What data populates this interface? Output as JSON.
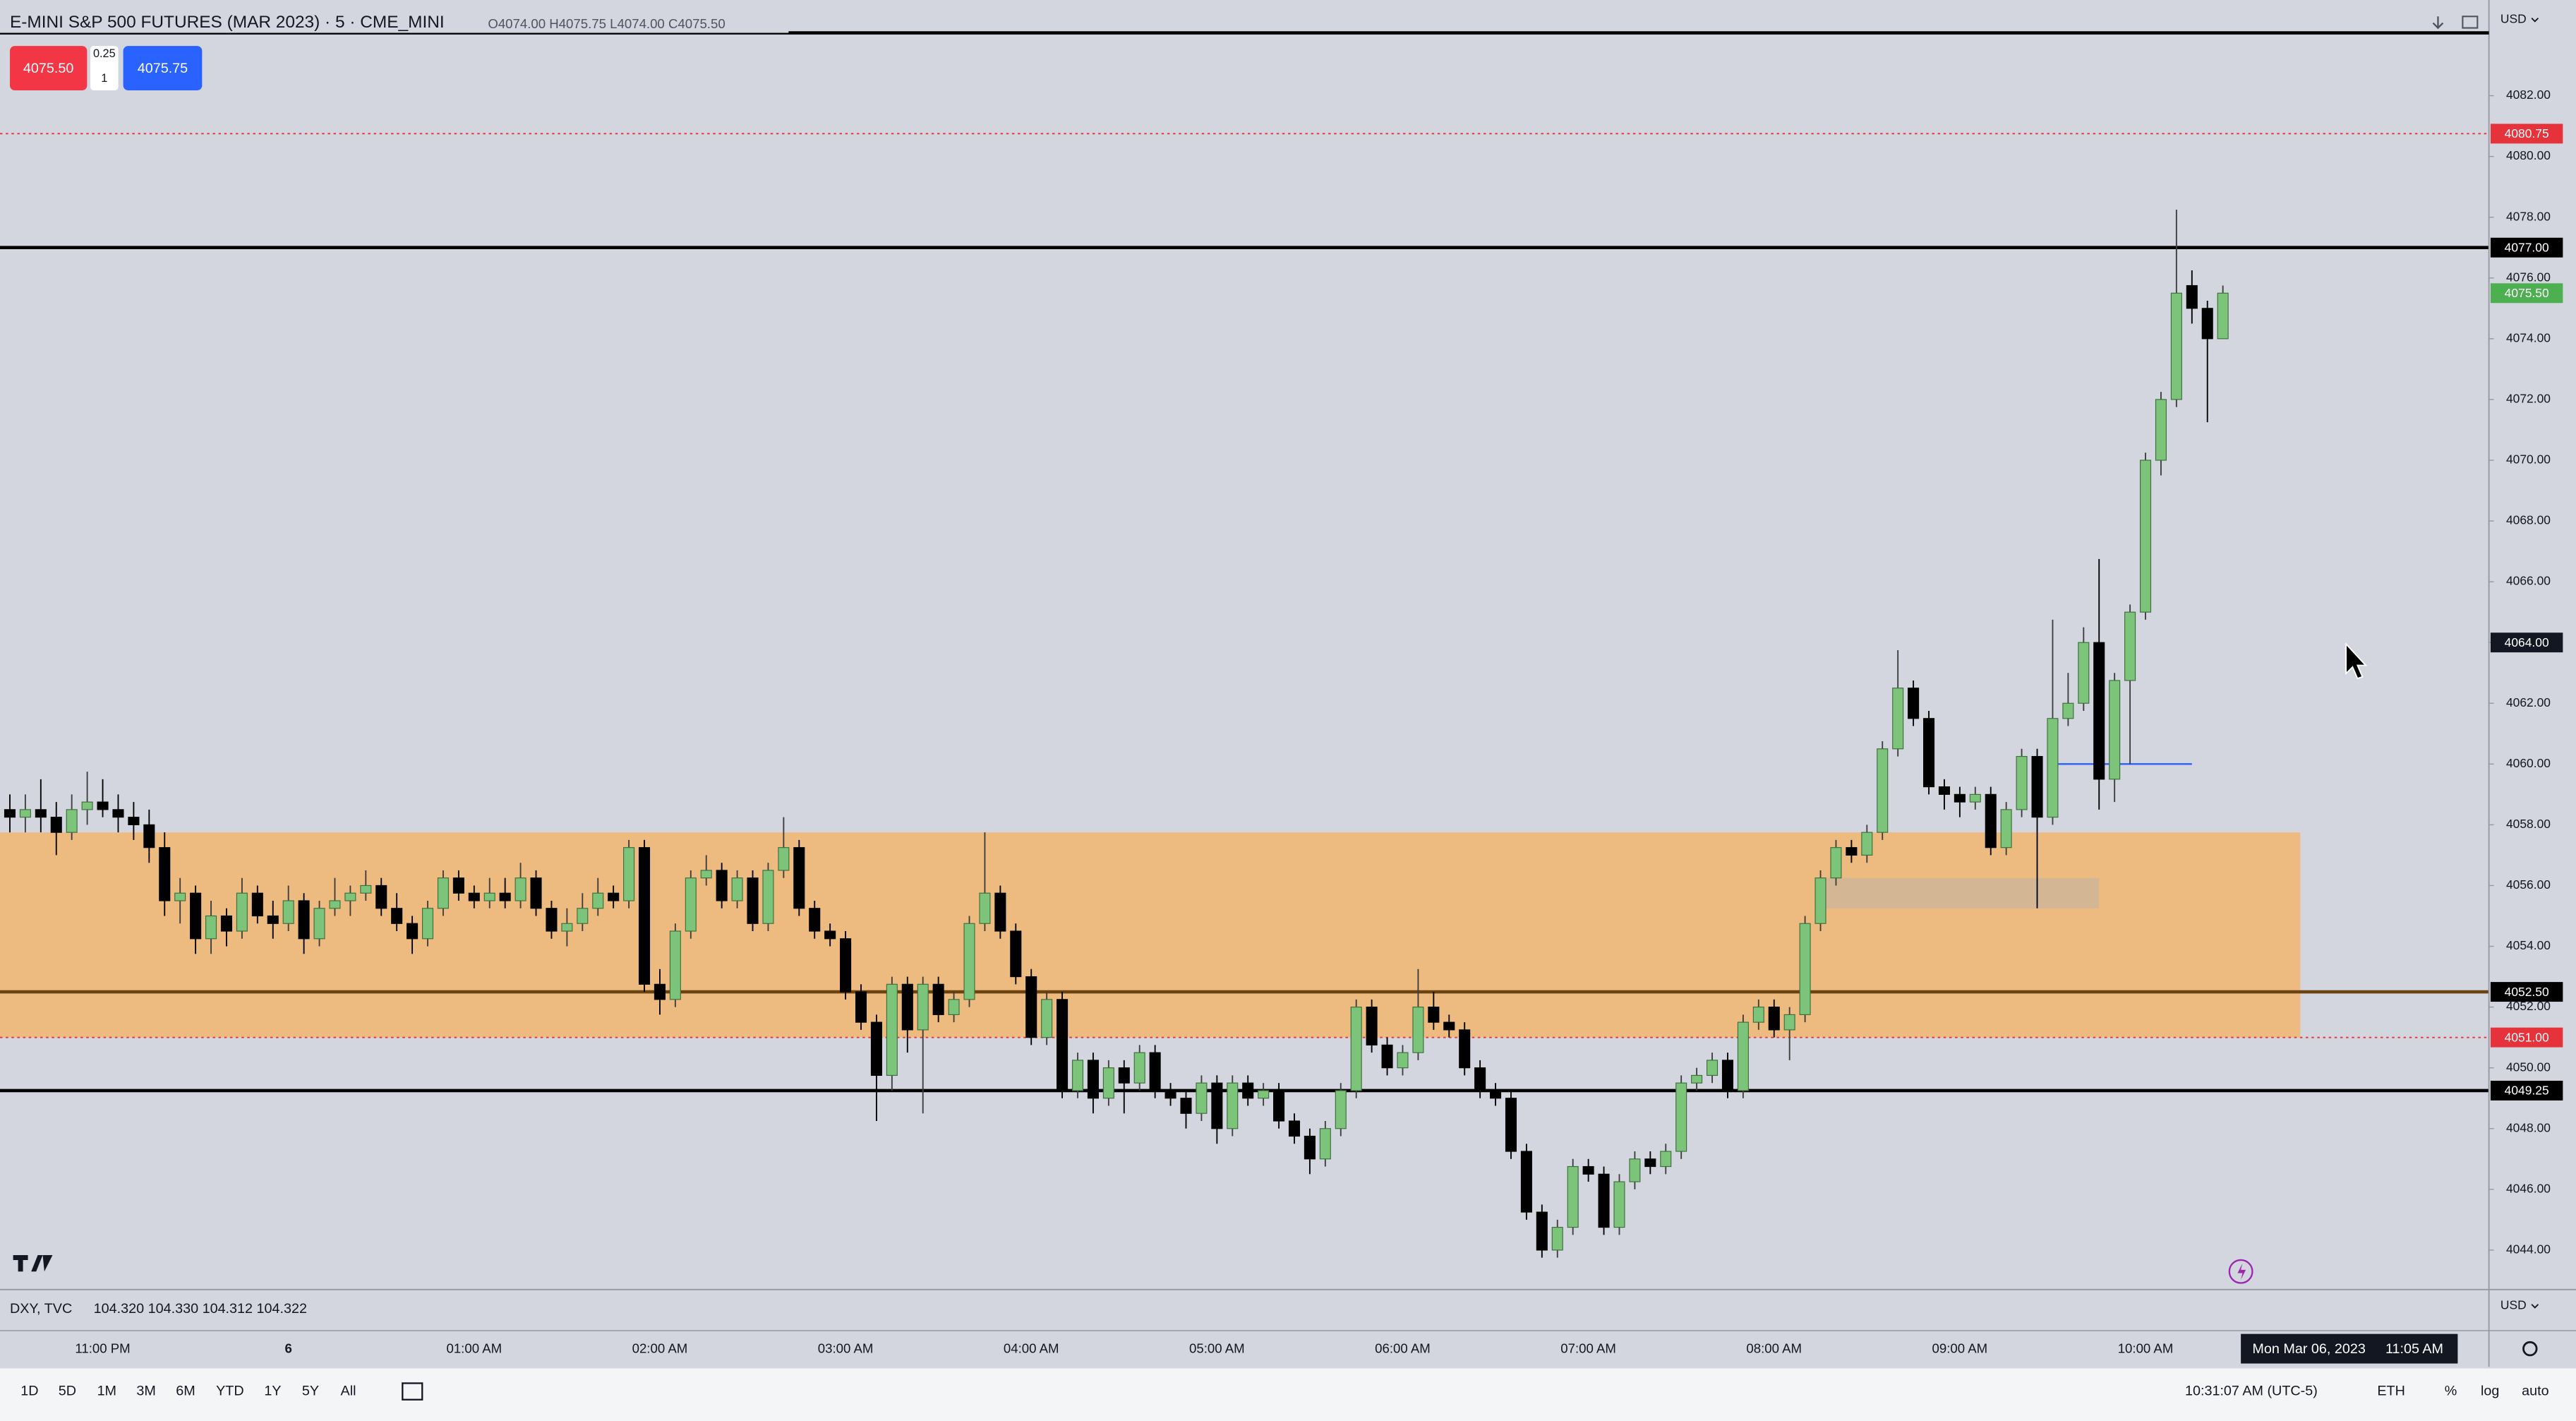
{
  "header": {
    "title": "E-MINI S&P 500 FUTURES (MAR 2023) · 5 · CME_MINI",
    "ohlc": "O4074.00 H4075.75 L4074.00 C4075.50"
  },
  "trade": {
    "sell": "4075.50",
    "spread": "0.25",
    "quantity": "1",
    "buy": "4075.75"
  },
  "currency": "USD",
  "chart_data": {
    "type": "candlestick",
    "up_color": "#7cc47a",
    "down_color": "#000000",
    "categories": [
      null,
      null,
      null,
      null,
      null,
      null,
      "11:00 PM",
      null,
      null,
      null,
      null,
      null,
      null,
      null,
      null,
      null,
      null,
      null,
      "6",
      null,
      null,
      null,
      null,
      null,
      null,
      null,
      null,
      null,
      null,
      null,
      "01:00 AM",
      null,
      null,
      null,
      null,
      null,
      null,
      null,
      null,
      null,
      null,
      null,
      "02:00 AM",
      null,
      null,
      null,
      null,
      null,
      null,
      null,
      null,
      null,
      null,
      null,
      "03:00 AM",
      null,
      null,
      null,
      null,
      null,
      null,
      null,
      null,
      null,
      null,
      null,
      "04:00 AM",
      null,
      null,
      null,
      null,
      null,
      null,
      null,
      null,
      null,
      null,
      null,
      "05:00 AM",
      null,
      null,
      null,
      null,
      null,
      null,
      null,
      null,
      null,
      null,
      null,
      "06:00 AM",
      null,
      null,
      null,
      null,
      null,
      null,
      null,
      null,
      null,
      null,
      null,
      "07:00 AM",
      null,
      null,
      null,
      null,
      null,
      null,
      null,
      null,
      null,
      null,
      null,
      "08:00 AM",
      null,
      null,
      null,
      null,
      null,
      null,
      null,
      null,
      null,
      null,
      null,
      "09:00 AM",
      null,
      null,
      null,
      null,
      null,
      null,
      null,
      null,
      null,
      null,
      null,
      "10:00 AM",
      null,
      null,
      null,
      null,
      null
    ],
    "candles": [
      [
        4058.5,
        4059,
        4057.75,
        4058.25
      ],
      [
        4058.25,
        4059,
        4057.75,
        4058.5
      ],
      [
        4058.5,
        4059.5,
        4057.75,
        4058.25
      ],
      [
        4058.25,
        4058.75,
        4057,
        4057.75
      ],
      [
        4057.75,
        4059,
        4057.5,
        4058.5
      ],
      [
        4058.5,
        4059.75,
        4058,
        4058.75
      ],
      [
        4058.75,
        4059.5,
        4058.25,
        4058.5
      ],
      [
        4058.5,
        4059,
        4057.75,
        4058.25
      ],
      [
        4058.25,
        4058.75,
        4057.5,
        4058
      ],
      [
        4058,
        4058.5,
        4056.75,
        4057.25
      ],
      [
        4057.25,
        4057.75,
        4055,
        4055.5
      ],
      [
        4055.5,
        4056.25,
        4054.75,
        4055.75
      ],
      [
        4055.75,
        4056,
        4053.75,
        4054.25
      ],
      [
        4054.25,
        4055.5,
        4053.75,
        4055
      ],
      [
        4055,
        4055.25,
        4054,
        4054.5
      ],
      [
        4054.5,
        4056.25,
        4054.25,
        4055.75
      ],
      [
        4055.75,
        4056,
        4054.75,
        4055
      ],
      [
        4055,
        4055.5,
        4054.25,
        4054.75
      ],
      [
        4054.75,
        4056,
        4054.5,
        4055.5
      ],
      [
        4055.5,
        4055.75,
        4053.75,
        4054.25
      ],
      [
        4054.25,
        4055.5,
        4054,
        4055.25
      ],
      [
        4055.25,
        4056.25,
        4055,
        4055.5
      ],
      [
        4055.5,
        4056,
        4055,
        4055.75
      ],
      [
        4055.75,
        4056.5,
        4055.5,
        4056
      ],
      [
        4056,
        4056.25,
        4055,
        4055.25
      ],
      [
        4055.25,
        4055.75,
        4054.5,
        4054.75
      ],
      [
        4054.75,
        4055,
        4053.75,
        4054.25
      ],
      [
        4054.25,
        4055.5,
        4054,
        4055.25
      ],
      [
        4055.25,
        4056.5,
        4055,
        4056.25
      ],
      [
        4056.25,
        4056.5,
        4055.5,
        4055.75
      ],
      [
        4055.75,
        4056,
        4055.25,
        4055.5
      ],
      [
        4055.5,
        4056.25,
        4055.25,
        4055.75
      ],
      [
        4055.75,
        4056.25,
        4055.25,
        4055.5
      ],
      [
        4055.5,
        4056.75,
        4055.25,
        4056.25
      ],
      [
        4056.25,
        4056.5,
        4055,
        4055.25
      ],
      [
        4055.25,
        4055.5,
        4054.25,
        4054.5
      ],
      [
        4054.5,
        4055.25,
        4054,
        4054.75
      ],
      [
        4054.75,
        4055.75,
        4054.5,
        4055.25
      ],
      [
        4055.25,
        4056.25,
        4055,
        4055.75
      ],
      [
        4055.75,
        4056,
        4055.25,
        4055.5
      ],
      [
        4055.5,
        4057.5,
        4055.25,
        4057.25
      ],
      [
        4057.25,
        4057.5,
        4052.5,
        4052.75
      ],
      [
        4052.75,
        4053.25,
        4051.75,
        4052.25
      ],
      [
        4052.25,
        4054.75,
        4052,
        4054.5
      ],
      [
        4054.5,
        4056.5,
        4054.25,
        4056.25
      ],
      [
        4056.25,
        4057,
        4056,
        4056.5
      ],
      [
        4056.5,
        4056.75,
        4055.25,
        4055.5
      ],
      [
        4055.5,
        4056.5,
        4055.25,
        4056.25
      ],
      [
        4056.25,
        4056.5,
        4054.5,
        4054.75
      ],
      [
        4054.75,
        4056.75,
        4054.5,
        4056.5
      ],
      [
        4056.5,
        4058.25,
        4056.25,
        4057.25
      ],
      [
        4057.25,
        4057.5,
        4055,
        4055.25
      ],
      [
        4055.25,
        4055.5,
        4054.25,
        4054.5
      ],
      [
        4054.5,
        4054.75,
        4054,
        4054.25
      ],
      [
        4054.25,
        4054.5,
        4052.25,
        4052.5
      ],
      [
        4052.5,
        4052.75,
        4051.25,
        4051.5
      ],
      [
        4051.5,
        4051.75,
        4048.25,
        4049.75
      ],
      [
        4049.75,
        4053,
        4049.25,
        4052.75
      ],
      [
        4052.75,
        4053,
        4050.5,
        4051.25
      ],
      [
        4051.25,
        4053,
        4048.5,
        4052.75
      ],
      [
        4052.75,
        4053,
        4051.5,
        4051.75
      ],
      [
        4051.75,
        4052.5,
        4051.5,
        4052.25
      ],
      [
        4052.25,
        4055,
        4052,
        4054.75
      ],
      [
        4054.75,
        4057.75,
        4054.5,
        4055.75
      ],
      [
        4055.75,
        4056,
        4054.25,
        4054.5
      ],
      [
        4054.5,
        4054.75,
        4052.75,
        4053
      ],
      [
        4053,
        4053.25,
        4050.75,
        4051
      ],
      [
        4051,
        4052.5,
        4050.75,
        4052.25
      ],
      [
        4052.25,
        4052.5,
        4049,
        4049.25
      ],
      [
        4049.25,
        4050.5,
        4049,
        4050.25
      ],
      [
        4050.25,
        4050.5,
        4048.5,
        4049
      ],
      [
        4049,
        4050.25,
        4048.75,
        4050
      ],
      [
        4050,
        4050.25,
        4048.5,
        4049.5
      ],
      [
        4049.5,
        4050.75,
        4049.25,
        4050.5
      ],
      [
        4050.5,
        4050.75,
        4049,
        4049.25
      ],
      [
        4049.25,
        4049.5,
        4048.75,
        4049
      ],
      [
        4049,
        4049.25,
        4048,
        4048.5
      ],
      [
        4048.5,
        4049.75,
        4048.25,
        4049.5
      ],
      [
        4049.5,
        4049.75,
        4047.5,
        4048
      ],
      [
        4048,
        4049.75,
        4047.75,
        4049.5
      ],
      [
        4049.5,
        4049.75,
        4048.75,
        4049
      ],
      [
        4049,
        4049.5,
        4048.75,
        4049.25
      ],
      [
        4049.25,
        4049.5,
        4048,
        4048.25
      ],
      [
        4048.25,
        4048.5,
        4047.5,
        4047.75
      ],
      [
        4047.75,
        4048,
        4046.5,
        4047
      ],
      [
        4047,
        4048.25,
        4046.75,
        4048
      ],
      [
        4048,
        4049.5,
        4047.75,
        4049.25
      ],
      [
        4049.25,
        4052.25,
        4049,
        4052
      ],
      [
        4052,
        4052.25,
        4050.5,
        4050.75
      ],
      [
        4050.75,
        4051,
        4049.75,
        4050
      ],
      [
        4050,
        4050.75,
        4049.75,
        4050.5
      ],
      [
        4050.5,
        4053.25,
        4050.25,
        4052
      ],
      [
        4052,
        4052.5,
        4051.25,
        4051.5
      ],
      [
        4051.5,
        4051.75,
        4051,
        4051.25
      ],
      [
        4051.25,
        4051.5,
        4049.75,
        4050
      ],
      [
        4050,
        4050.25,
        4049,
        4049.25
      ],
      [
        4049.25,
        4049.5,
        4048.75,
        4049
      ],
      [
        4049,
        4049.25,
        4047,
        4047.25
      ],
      [
        4047.25,
        4047.5,
        4045,
        4045.25
      ],
      [
        4045.25,
        4045.5,
        4043.75,
        4044
      ],
      [
        4044,
        4045,
        4043.75,
        4044.75
      ],
      [
        4044.75,
        4047,
        4044.5,
        4046.75
      ],
      [
        4046.75,
        4047,
        4046.25,
        4046.5
      ],
      [
        4046.5,
        4046.75,
        4044.5,
        4044.75
      ],
      [
        4044.75,
        4046.5,
        4044.5,
        4046.25
      ],
      [
        4046.25,
        4047.25,
        4046,
        4047
      ],
      [
        4047,
        4047.25,
        4046.5,
        4046.75
      ],
      [
        4046.75,
        4047.5,
        4046.5,
        4047.25
      ],
      [
        4047.25,
        4049.75,
        4047,
        4049.5
      ],
      [
        4049.5,
        4050,
        4049.25,
        4049.75
      ],
      [
        4049.75,
        4050.5,
        4049.5,
        4050.25
      ],
      [
        4050.25,
        4050.5,
        4049,
        4049.25
      ],
      [
        4049.25,
        4051.75,
        4049,
        4051.5
      ],
      [
        4051.5,
        4052.25,
        4051.25,
        4052
      ],
      [
        4052,
        4052.25,
        4051,
        4051.25
      ],
      [
        4051.25,
        4052,
        4050.25,
        4051.75
      ],
      [
        4051.75,
        4055,
        4051.5,
        4054.75
      ],
      [
        4054.75,
        4056.5,
        4054.5,
        4056.25
      ],
      [
        4056.25,
        4057.5,
        4056,
        4057.25
      ],
      [
        4057.25,
        4057.5,
        4056.75,
        4057
      ],
      [
        4057,
        4058,
        4056.75,
        4057.75
      ],
      [
        4057.75,
        4060.75,
        4057.5,
        4060.5
      ],
      [
        4060.5,
        4063.75,
        4060.25,
        4062.5
      ],
      [
        4062.5,
        4062.75,
        4061.25,
        4061.5
      ],
      [
        4061.5,
        4061.75,
        4059,
        4059.25
      ],
      [
        4059.25,
        4059.5,
        4058.5,
        4059
      ],
      [
        4059,
        4059.25,
        4058.25,
        4058.75
      ],
      [
        4058.75,
        4059.25,
        4058.5,
        4059
      ],
      [
        4059,
        4059.25,
        4057,
        4057.25
      ],
      [
        4057.25,
        4058.75,
        4057,
        4058.5
      ],
      [
        4058.5,
        4060.5,
        4058.25,
        4060.25
      ],
      [
        4060.25,
        4060.5,
        4055.25,
        4058.25
      ],
      [
        4058.25,
        4064.75,
        4058,
        4061.5
      ],
      [
        4061.5,
        4063,
        4061.25,
        4062
      ],
      [
        4062,
        4064.5,
        4061.75,
        4064
      ],
      [
        4064,
        4066.75,
        4058.5,
        4059.5
      ],
      [
        4059.5,
        4063,
        4058.75,
        4062.75
      ],
      [
        4062.75,
        4065.25,
        4060,
        4065
      ],
      [
        4065,
        4070.25,
        4064.75,
        4070
      ],
      [
        4070,
        4072.25,
        4069.5,
        4072
      ],
      [
        4072,
        4078.25,
        4071.75,
        4075.5
      ],
      [
        4075.75,
        4076.25,
        4074.5,
        4075
      ],
      [
        4075,
        4075.25,
        4071.25,
        4074
      ],
      [
        4074,
        4075.75,
        4074,
        4075.5
      ]
    ],
    "ylim": [
      4042.7,
      4085.15
    ],
    "yticks": [
      {
        "value": 4044,
        "label": "4044.00"
      },
      {
        "value": 4046,
        "label": "4046.00"
      },
      {
        "value": 4048,
        "label": "4048.00"
      },
      {
        "value": 4050,
        "label": "4050.00"
      },
      {
        "value": 4052,
        "label": "4052.00"
      },
      {
        "value": 4054,
        "label": "4054.00"
      },
      {
        "value": 4056,
        "label": "4056.00"
      },
      {
        "value": 4058,
        "label": "4058.00"
      },
      {
        "value": 4060,
        "label": "4060.00"
      },
      {
        "value": 4062,
        "label": "4062.00"
      },
      {
        "value": 4064,
        "label": "4064.00"
      },
      {
        "value": 4066,
        "label": "4066.00"
      },
      {
        "value": 4068,
        "label": "4068.00"
      },
      {
        "value": 4070,
        "label": "4070.00"
      },
      {
        "value": 4072,
        "label": "4072.00"
      },
      {
        "value": 4074,
        "label": "4074.00"
      },
      {
        "value": 4076,
        "label": "4076.00"
      },
      {
        "value": 4078,
        "label": "4078.00"
      },
      {
        "value": 4080,
        "label": "4080.00"
      },
      {
        "value": 4082,
        "label": "4082.00"
      }
    ],
    "zone": {
      "high": 4057.75,
      "low": 4051,
      "to": 148,
      "color": "#efb874"
    },
    "box": {
      "high": 4056.25,
      "low": 4055.25,
      "from": 117,
      "to": 135,
      "color": "#c9b49a"
    },
    "segment": {
      "value": 4060,
      "from": 132,
      "to": 141,
      "color": "#2962ff"
    },
    "levels": [
      {
        "value": 4080.75,
        "label": "4080.75",
        "color": "#e5323b",
        "line": "dotted",
        "line_color": "#e5323b"
      },
      {
        "value": 4077,
        "label": "4077.00",
        "color": "#000000",
        "line": "solid",
        "line_color": "#000000"
      },
      {
        "value": 4075.5,
        "label": "4075.50",
        "color": "#4caf50",
        "line": "none",
        "line_color": "#4caf50"
      },
      {
        "value": 4064,
        "label": "4064.00",
        "color": "#131722",
        "line": "none",
        "line_color": "#131722"
      },
      {
        "value": 4052.5,
        "label": "4052.50",
        "color": "#000000",
        "line": "solid",
        "line_color": "#6b4310"
      },
      {
        "value": 4051,
        "label": "4051.00",
        "color": "#e5323b",
        "line": "dotted",
        "line_color": "#e5323b"
      },
      {
        "value": 4049.25,
        "label": "4049.25",
        "color": "#000000",
        "line": "solid",
        "line_color": "#000000"
      }
    ]
  },
  "indicator": {
    "name": "DXY, TVC",
    "values": "104.320 104.330 104.312 104.322"
  },
  "cursor": {
    "date": "Mon Mar 06, 2023",
    "time": "11:05 AM"
  },
  "toolbar": {
    "ranges": [
      "1D",
      "5D",
      "1M",
      "3M",
      "6M",
      "YTD",
      "1Y",
      "5Y",
      "All"
    ],
    "clock": "10:31:07 AM (UTC-5)",
    "session": "ETH",
    "percent": "%",
    "log": "log",
    "auto": "auto"
  }
}
